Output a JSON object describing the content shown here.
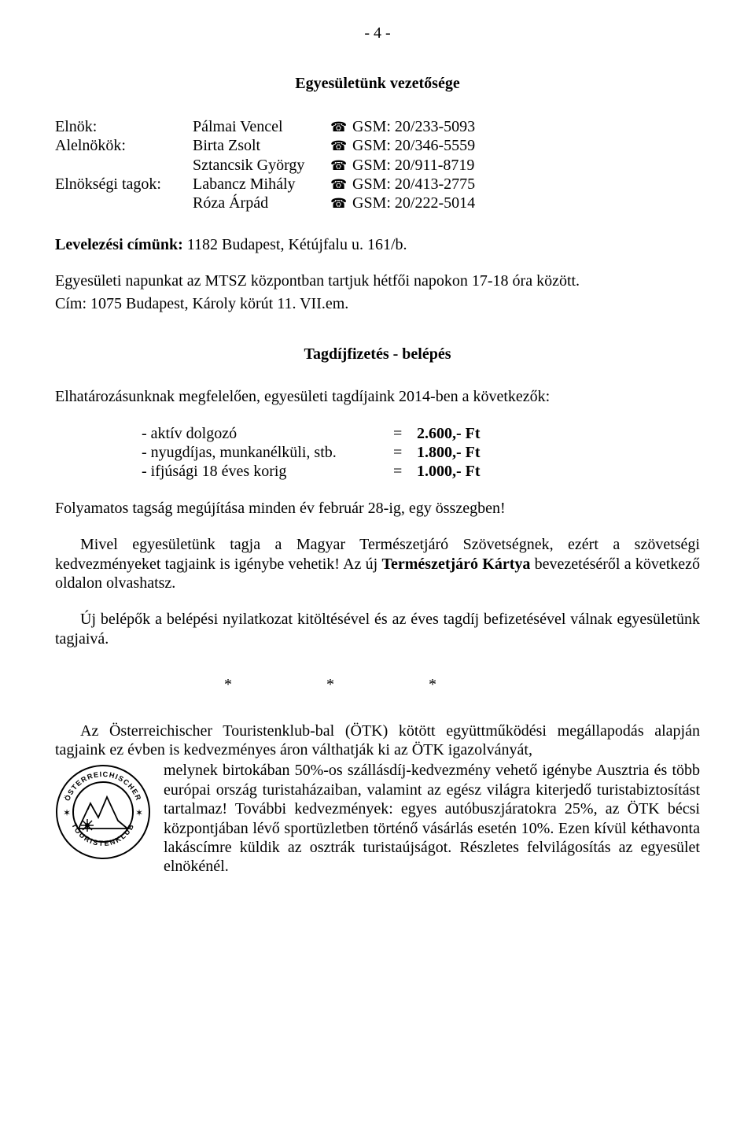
{
  "pageNumber": "- 4 -",
  "heading1": "Egyesületünk vezetősége",
  "leaders": {
    "rows": [
      {
        "role": "Elnök:",
        "name": "Pálmai Vencel",
        "phone": "GSM: 20/233-5093"
      },
      {
        "role": "Alelnökök:",
        "name": "Birta Zsolt",
        "phone": "GSM: 20/346-5559"
      },
      {
        "role": "",
        "name": "Sztancsik György",
        "phone": "GSM: 20/911-8719"
      },
      {
        "role": "Elnökségi tagok:",
        "name": "Labancz Mihály",
        "phone": "GSM: 20/413-2775"
      },
      {
        "role": "",
        "name": "Róza Árpád",
        "phone": "GSM: 20/222-5014"
      }
    ]
  },
  "address": {
    "label": "Levelezési címünk:",
    "value": " 1182 Budapest, Kétújfalu u. 161/b."
  },
  "meeting": {
    "line1": "Egyesületi napunkat az MTSZ központban tartjuk hétfői napokon 17-18 óra között.",
    "line2": "Cím: 1075 Budapest, Károly körút 11. VII.em."
  },
  "heading2": "Tagdíjfizetés - belépés",
  "feesIntro": "Elhatározásunknak megfelelően, egyesületi tagdíjaink 2014-ben a következők:",
  "fees": {
    "rows": [
      {
        "label": "- aktív dolgozó",
        "eq": "=",
        "value": "2.600,- Ft"
      },
      {
        "label": "- nyugdíjas, munkanélküli, stb.",
        "eq": "=",
        "value": "1.800,- Ft"
      },
      {
        "label": "- ifjúsági 18 éves korig",
        "eq": "=",
        "value": "1.000,- Ft"
      }
    ]
  },
  "renewal": "Folyamatos tagság megújítása minden év február 28-ig, egy összegben!",
  "mtszPara": {
    "pre": "Mivel egyesületünk tagja a Magyar Természetjáró Szövetségnek, ezért a szövetségi kedvezményeket tagjaink is igénybe vehetik! Az új ",
    "bold": "Természetjáró Kártya",
    "post": " bevezetéséről a következő oldalon olvashatsz."
  },
  "newMembers": "Új belépők a belépési nyilatkozat kitöltésével és az éves tagdíj befizetésével válnak egyesületünk tagjaivá.",
  "stars": "***",
  "otk": {
    "intro": "Az Österreichischer Touristenklub-bal (ÖTK) kötött együttműködési megállapodás alapján tagjaink ez évben is kedvezményes áron válthatják ki az ÖTK igazolványát,",
    "wrapped": "melynek birtokában 50%-os szállásdíj-kedvezmény vehető igénybe Ausztria és több európai ország turistaházaiban, valamint az egész világra kiterjedő turistabiztosítást tartalmaz! További kedvezmények: egyes autóbuszjáratokra 25%, az ÖTK bécsi központjában lévő sportüzletben történő vásárlás esetén 10%. Ezen kívül kéthavonta lakáscímre küldik az osztrák turistaújságot. Részletes felvilágosítás az egyesület elnökénél."
  },
  "logo": {
    "outerText": "ÖSTERREICHISCHER TOURISTENKLUB",
    "colors": {
      "stroke": "#000000",
      "fill": "#ffffff"
    }
  }
}
